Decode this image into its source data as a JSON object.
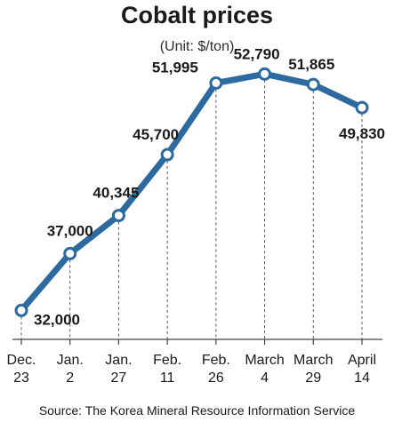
{
  "chart_data": {
    "type": "line",
    "title": "Cobalt prices",
    "subtitle": "(Unit: $/ton)",
    "source": "Source: The Korea Mineral Resource Information Service",
    "categories": [
      [
        "Dec.",
        "23"
      ],
      [
        "Jan.",
        "2"
      ],
      [
        "Jan.",
        "27"
      ],
      [
        "Feb.",
        "11"
      ],
      [
        "Feb.",
        "26"
      ],
      [
        "March",
        "4"
      ],
      [
        "March",
        "29"
      ],
      [
        "April",
        "14"
      ]
    ],
    "values": [
      32000,
      37000,
      40345,
      45700,
      51995,
      52790,
      51865,
      49830
    ],
    "value_labels": [
      "32,000",
      "37,000",
      "40,345",
      "45,700",
      "51,995",
      "52,790",
      "51,865",
      "49,830"
    ],
    "ylim": [
      30000,
      55000
    ],
    "grid": false,
    "colors": {
      "line": "#2d6a9f",
      "marker_fill": "#ffffff",
      "drop_lines": "#555555",
      "axis": "#444444"
    }
  }
}
